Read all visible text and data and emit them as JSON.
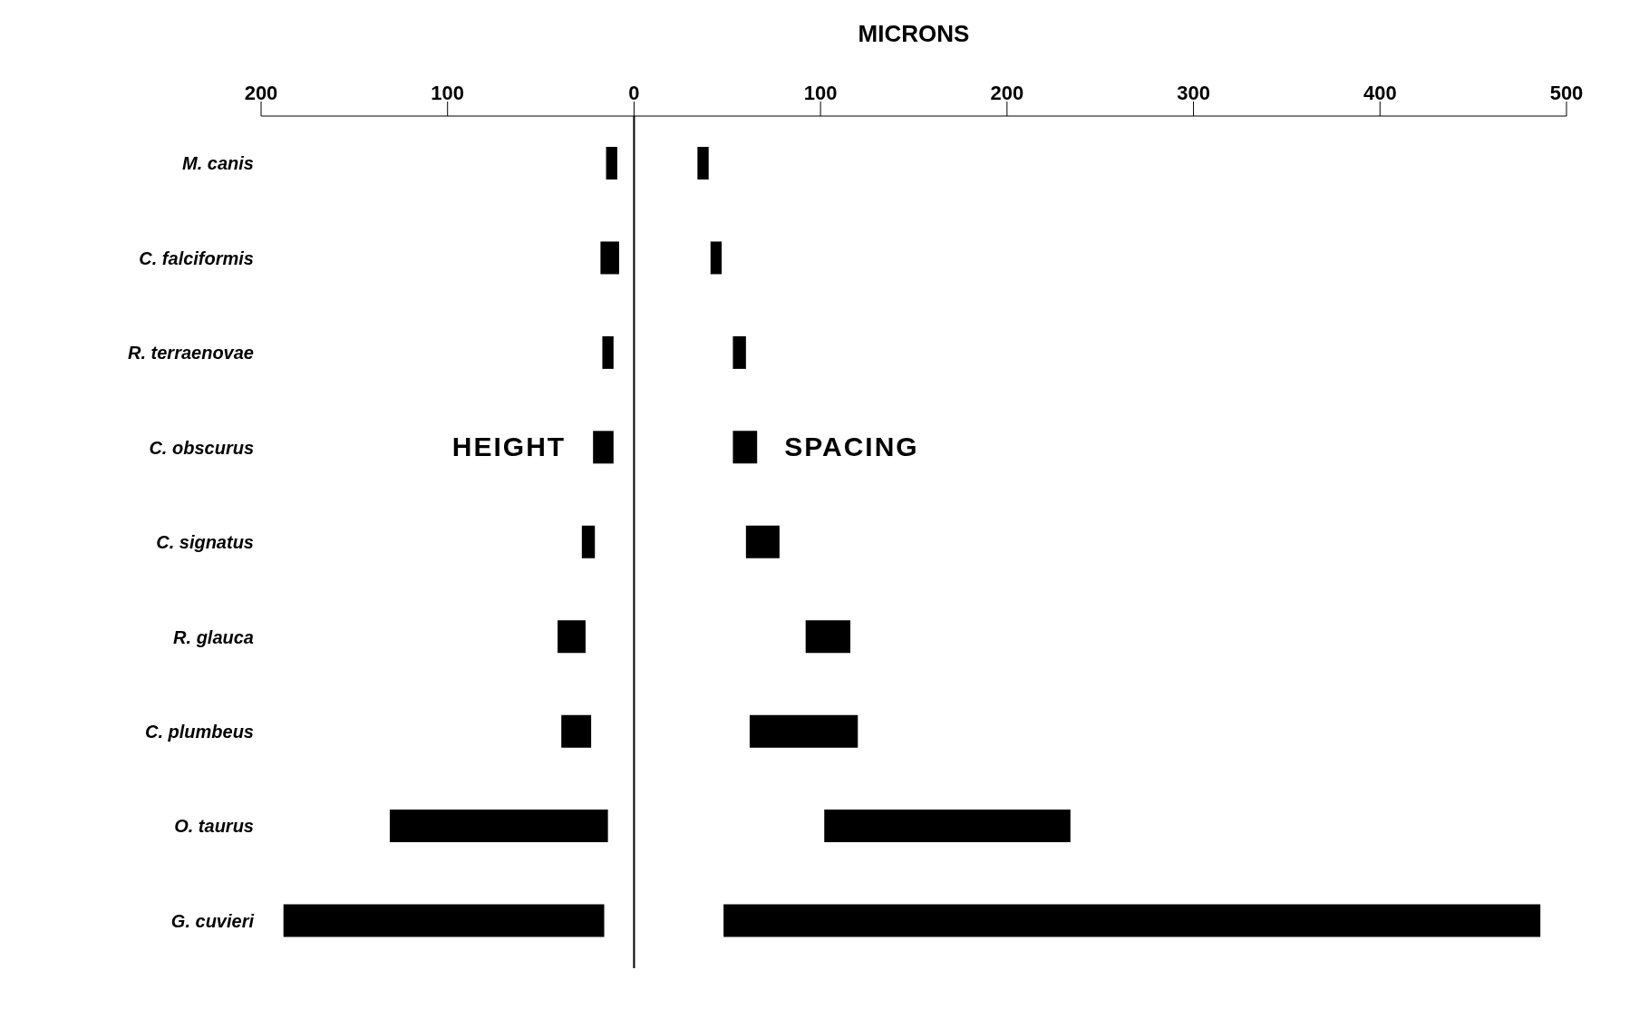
{
  "chart_data": {
    "type": "bar",
    "orientation": "horizontal",
    "xlabel": "MICRONS",
    "categories": [
      "M. canis",
      "C. falciformis",
      "R. terraenovae",
      "C. obscurus",
      "C. signatus",
      "R. glauca",
      "C. plumbeus",
      "O. taurus",
      "G. cuvieri"
    ],
    "series": [
      {
        "name": "HEIGHT",
        "color": "#000000",
        "base": [
          -15,
          -18,
          -17,
          -22,
          -28,
          -41,
          -39,
          -131,
          -188
        ],
        "values": [
          6,
          10,
          6,
          11,
          7,
          15,
          16,
          117,
          172
        ]
      },
      {
        "name": "SPACING",
        "color": "#000000",
        "base": [
          34,
          41,
          53,
          53,
          60,
          92,
          62,
          102,
          48
        ],
        "values": [
          6,
          6,
          7,
          13,
          18,
          24,
          58,
          132,
          438
        ]
      }
    ],
    "xlim": [
      -200,
      500
    ],
    "xticks": [
      {
        "value": -200,
        "label": "200"
      },
      {
        "value": -100,
        "label": "100"
      },
      0,
      100,
      200,
      300,
      400,
      500
    ],
    "ref_lines": [
      {
        "axis": "x",
        "value": 0
      }
    ],
    "grid": false,
    "legend": false
  }
}
